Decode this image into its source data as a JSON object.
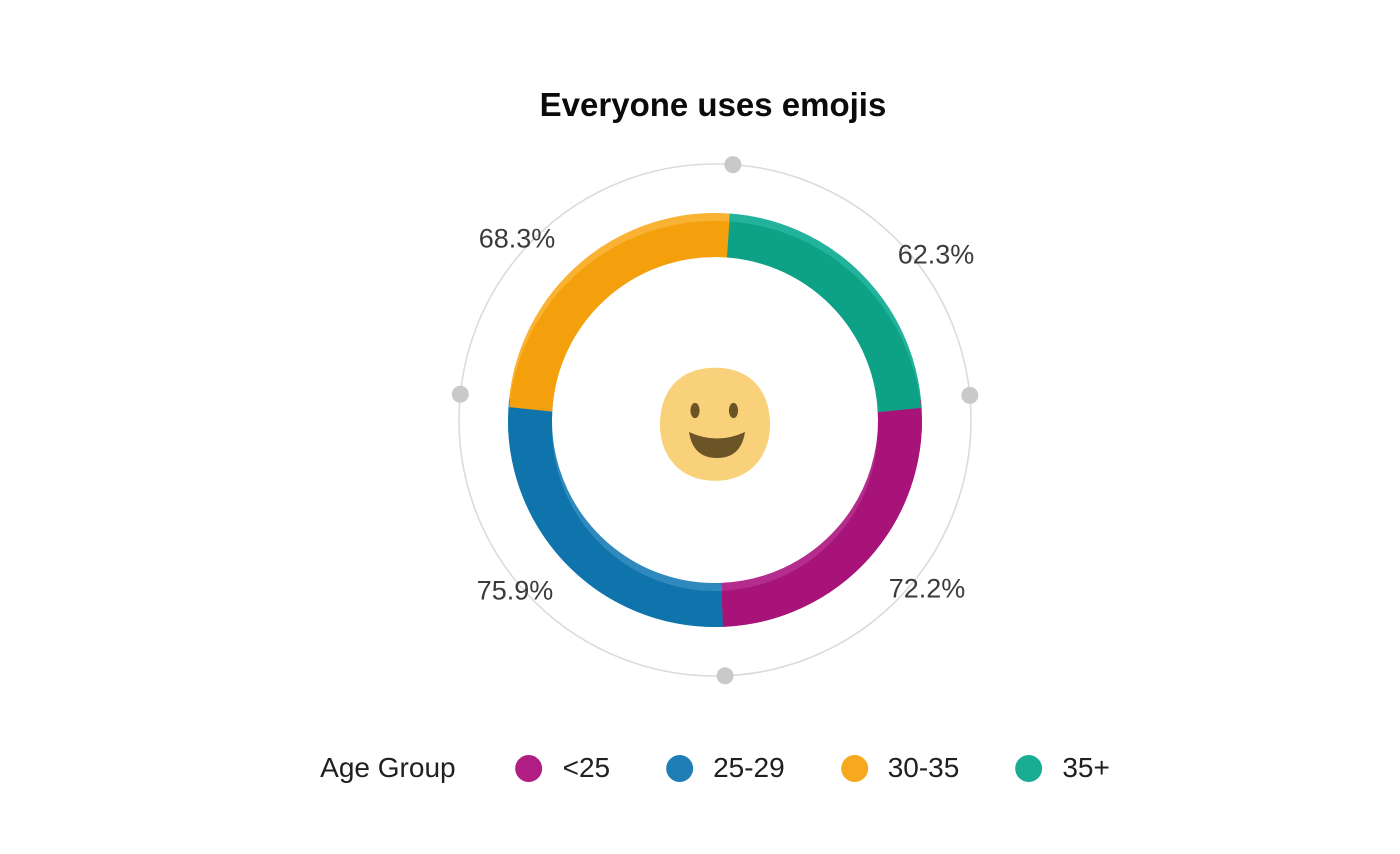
{
  "title": "Everyone uses emojis",
  "chart_data": {
    "type": "pie",
    "subtype": "donut",
    "title": "Everyone uses emojis",
    "unit": "%",
    "direction": "clockwise",
    "start_angle_deg": 4,
    "normalization": "segment angles proportional to values, full ring = sum of values (278.7)",
    "categories": [
      "<25",
      "25-29",
      "30-35",
      "35+"
    ],
    "values": [
      72.2,
      75.9,
      68.3,
      62.3
    ],
    "segments_clockwise_from_top": [
      {
        "category": "35+",
        "value": 62.3,
        "display": "62.3%",
        "color": "#1BAD93",
        "color_light": "#23B29B",
        "color_dark": "#0DA185"
      },
      {
        "category": "<25",
        "value": 72.2,
        "display": "72.2%",
        "color": "#B01E83",
        "color_light": "#B52D8C",
        "color_dark": "#A81379"
      },
      {
        "category": "25-29",
        "value": 75.9,
        "display": "75.9%",
        "color": "#1F7FB5",
        "color_light": "#2F89BD",
        "color_dark": "#0F74AB"
      },
      {
        "category": "30-35",
        "value": 68.3,
        "display": "68.3%",
        "color": "#F6A91D",
        "color_light": "#F9B233",
        "color_dark": "#F3A00C"
      }
    ],
    "axis_circle": {
      "color": "#DBDBDB",
      "dot_color": "#C9C9C9"
    },
    "center_icon": "smiley-emoji",
    "emoji_colors": {
      "face": "#F8D17A",
      "features": "#6B5426"
    },
    "legend_position": "bottom"
  },
  "legend": {
    "title": "Age Group",
    "items": [
      {
        "label": "<25",
        "color": "#B01E83"
      },
      {
        "label": "25-29",
        "color": "#1F7FB5"
      },
      {
        "label": "30-35",
        "color": "#F6A91D"
      },
      {
        "label": "35+",
        "color": "#1BAD93"
      }
    ]
  }
}
